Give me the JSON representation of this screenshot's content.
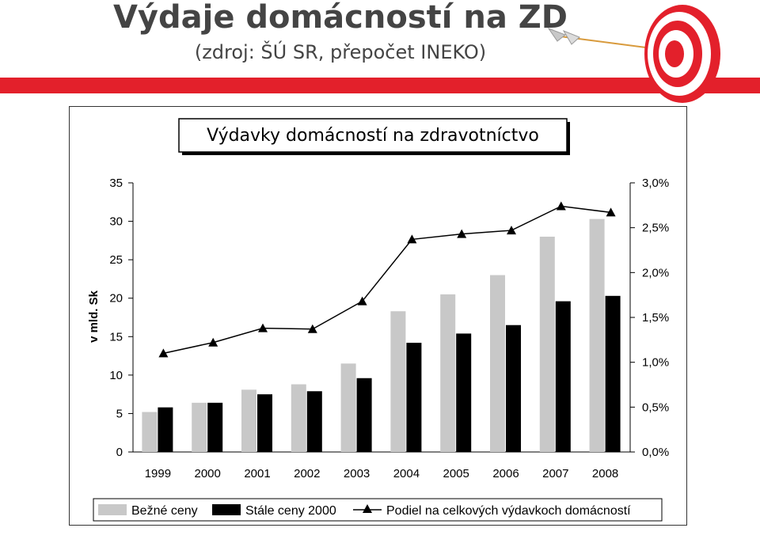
{
  "slide": {
    "title": "Výdaje domácností na ZD",
    "subtitle": "(zdroj: ŠÚ SR, přepočet INEKO)"
  },
  "colors": {
    "band": "#e3202b",
    "target_red": "#e3202b",
    "bar_current": "#c8c8c8",
    "bar_constant": "#000000",
    "line": "#000000"
  },
  "chart_data": {
    "type": "bar",
    "title": "Výdavky domácností na zdravotníctvo",
    "ylabel": "v mld. Sk",
    "y2label": "",
    "categories": [
      "1999",
      "2000",
      "2001",
      "2002",
      "2003",
      "2004",
      "2005",
      "2006",
      "2007",
      "2008"
    ],
    "ylim": [
      0,
      35
    ],
    "yticks": [
      "0",
      "5",
      "10",
      "15",
      "20",
      "25",
      "30",
      "35"
    ],
    "y2lim": [
      0,
      3.0
    ],
    "y2ticks": [
      "0,0%",
      "0,5%",
      "1,0%",
      "1,5%",
      "2,0%",
      "2,5%",
      "3,0%"
    ],
    "series": [
      {
        "name": "Bežné ceny",
        "kind": "bar",
        "values": [
          5.2,
          6.4,
          8.1,
          8.8,
          11.5,
          18.3,
          20.5,
          23.0,
          28.0,
          30.3
        ]
      },
      {
        "name": "Stále ceny 2000",
        "kind": "bar",
        "values": [
          5.8,
          6.4,
          7.5,
          7.9,
          9.6,
          14.2,
          15.4,
          16.5,
          19.6,
          20.3
        ]
      },
      {
        "name": "Podiel na celkových výdavkoch domácností",
        "kind": "line",
        "axis": "right",
        "values": [
          1.1,
          1.22,
          1.38,
          1.37,
          1.68,
          2.37,
          2.43,
          2.47,
          2.74,
          2.67
        ]
      }
    ],
    "legend_position": "bottom",
    "grid": false
  }
}
